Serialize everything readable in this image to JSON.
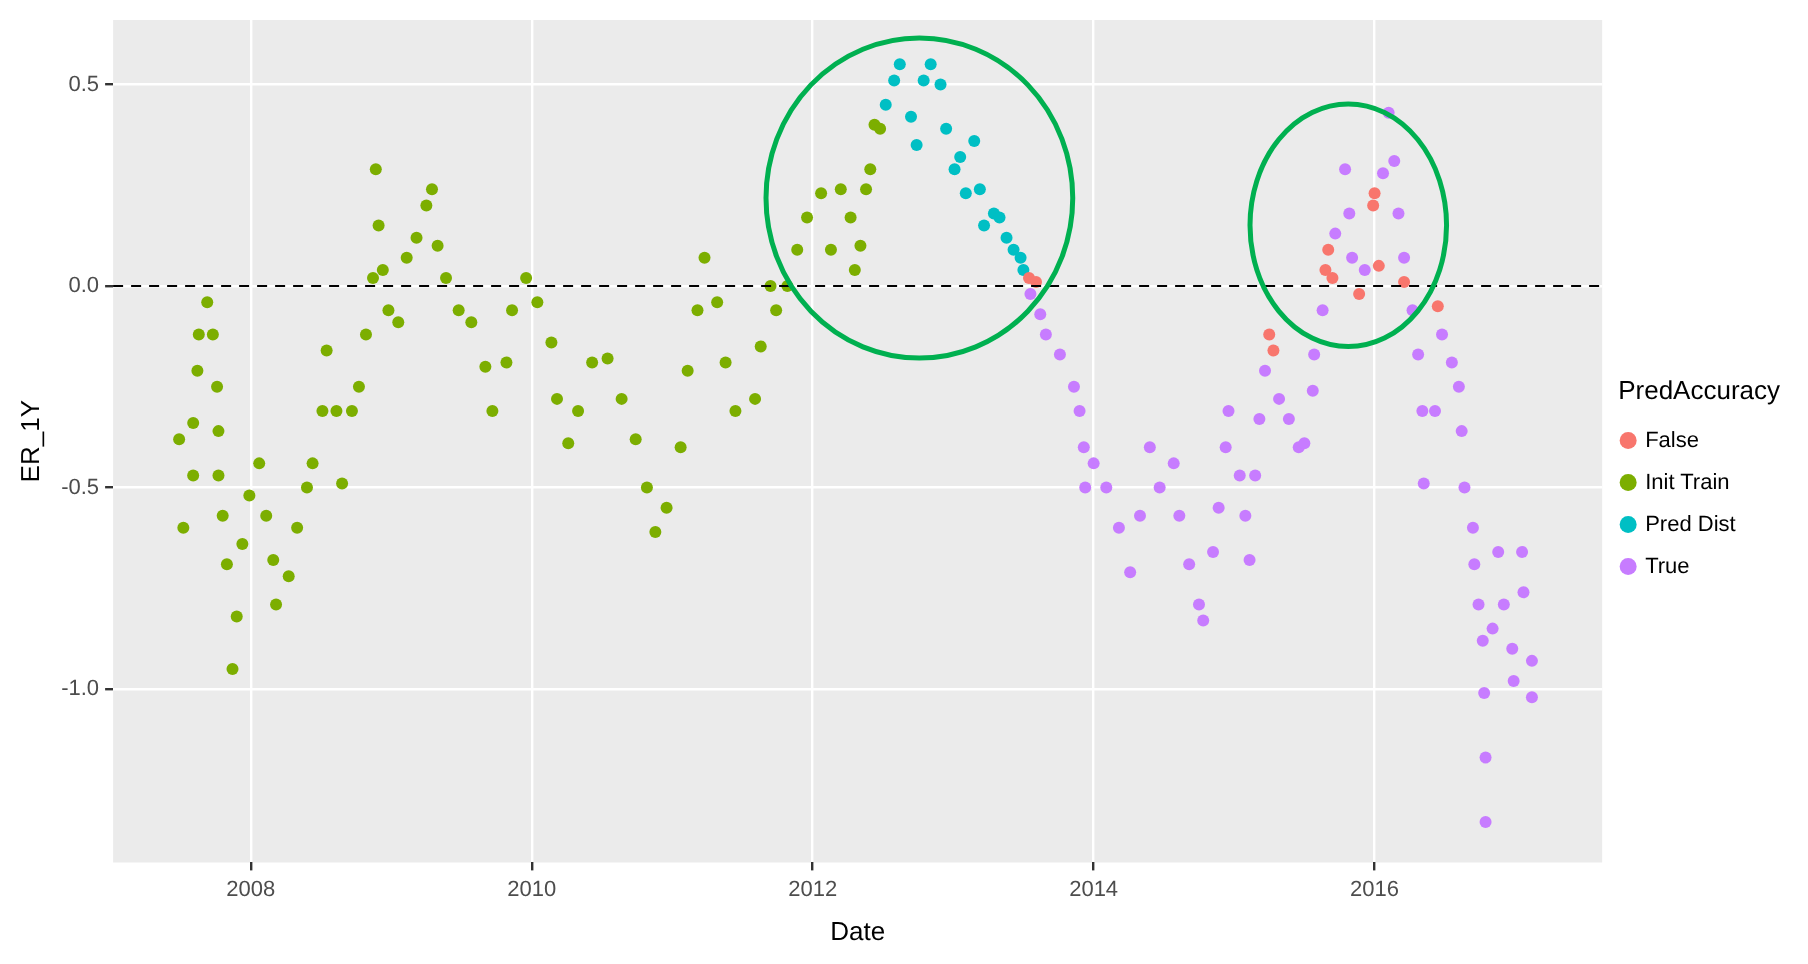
{
  "chart_data": {
    "type": "scatter",
    "xlabel": "Date",
    "ylabel": "ER_1Y",
    "legend_title": "PredAccuracy",
    "legend": "right",
    "grid": true,
    "marker": "circle",
    "xlim": [
      2007.02,
      2017.62
    ],
    "xticks": [
      2008,
      2010,
      2012,
      2014,
      2016
    ],
    "ylim": [
      -1.43,
      0.66
    ],
    "yticks": [
      {
        "value": -1,
        "label": "-1.0"
      },
      {
        "value": -0.5,
        "label": "-0.5"
      },
      {
        "value": 0,
        "label": "0.0"
      },
      {
        "value": 0.5,
        "label": "0.5"
      }
    ],
    "ref_lines": [
      {
        "axis": "y",
        "value": 0,
        "color": "#000000",
        "line_style": "dashed"
      }
    ],
    "series": [
      {
        "name": "False",
        "color": "#f8766d",
        "x": [
          2013.54,
          2013.59,
          2015.25,
          2015.28,
          2015.65,
          2015.67,
          2015.7,
          2015.89,
          2015.99,
          2016.0,
          2016.03,
          2016.21,
          2016.45
        ],
        "values": [
          0.02,
          0.01,
          -0.12,
          -0.16,
          0.04,
          0.09,
          0.02,
          -0.02,
          0.2,
          0.23,
          0.05,
          0.01,
          -0.05
        ]
      },
      {
        "name": "Init Train",
        "color": "#7cae00",
        "x": [
          2007.49,
          2007.52,
          2007.59,
          2007.59,
          2007.62,
          2007.63,
          2007.69,
          2007.73,
          2007.76,
          2007.77,
          2007.77,
          2007.8,
          2007.83,
          2007.87,
          2007.9,
          2007.94,
          2007.99,
          2008.06,
          2008.11,
          2008.16,
          2008.18,
          2008.27,
          2008.33,
          2008.4,
          2008.44,
          2008.51,
          2008.54,
          2008.61,
          2008.65,
          2008.72,
          2008.77,
          2008.82,
          2008.87,
          2008.89,
          2008.91,
          2008.94,
          2008.98,
          2009.05,
          2009.11,
          2009.18,
          2009.25,
          2009.29,
          2009.33,
          2009.39,
          2009.48,
          2009.57,
          2009.67,
          2009.72,
          2009.82,
          2009.86,
          2009.96,
          2010.04,
          2010.14,
          2010.18,
          2010.26,
          2010.33,
          2010.43,
          2010.54,
          2010.64,
          2010.74,
          2010.82,
          2010.88,
          2010.96,
          2011.06,
          2011.11,
          2011.18,
          2011.23,
          2011.32,
          2011.38,
          2011.45,
          2011.59,
          2011.63,
          2011.7,
          2011.74,
          2011.82,
          2011.89,
          2011.96,
          2012.06,
          2012.13,
          2012.2,
          2012.27,
          2012.3,
          2012.34,
          2012.38,
          2012.41,
          2012.44,
          2012.48
        ],
        "values": [
          -0.38,
          -0.6,
          -0.47,
          -0.34,
          -0.21,
          -0.12,
          -0.04,
          -0.12,
          -0.25,
          -0.36,
          -0.47,
          -0.57,
          -0.69,
          -0.95,
          -0.82,
          -0.64,
          -0.52,
          -0.44,
          -0.57,
          -0.68,
          -0.79,
          -0.72,
          -0.6,
          -0.5,
          -0.44,
          -0.31,
          -0.16,
          -0.31,
          -0.49,
          -0.31,
          -0.25,
          -0.12,
          0.02,
          0.29,
          0.15,
          0.04,
          -0.06,
          -0.09,
          0.07,
          0.12,
          0.2,
          0.24,
          0.1,
          0.02,
          -0.06,
          -0.09,
          -0.2,
          -0.31,
          -0.19,
          -0.06,
          0.02,
          -0.04,
          -0.14,
          -0.28,
          -0.39,
          -0.31,
          -0.19,
          -0.18,
          -0.28,
          -0.38,
          -0.5,
          -0.61,
          -0.55,
          -0.4,
          -0.21,
          -0.06,
          0.07,
          -0.04,
          -0.19,
          -0.31,
          -0.28,
          -0.15,
          0.0,
          -0.06,
          0.0,
          0.09,
          0.17,
          0.23,
          0.09,
          0.24,
          0.17,
          0.04,
          0.1,
          0.24,
          0.29,
          0.4,
          0.39
        ]
      },
      {
        "name": "Pred Dist",
        "color": "#00bfc4",
        "x": [
          2012.52,
          2012.58,
          2012.62,
          2012.7,
          2012.74,
          2012.79,
          2012.84,
          2012.91,
          2012.95,
          2013.01,
          2013.05,
          2013.09,
          2013.15,
          2013.19,
          2013.22,
          2013.29,
          2013.33,
          2013.38,
          2013.43,
          2013.48,
          2013.5
        ],
        "values": [
          0.45,
          0.51,
          0.55,
          0.42,
          0.35,
          0.51,
          0.55,
          0.5,
          0.39,
          0.29,
          0.32,
          0.23,
          0.36,
          0.24,
          0.15,
          0.18,
          0.17,
          0.12,
          0.09,
          0.07,
          0.04
        ]
      },
      {
        "name": "True",
        "color": "#c77cff",
        "x": [
          2013.55,
          2013.62,
          2013.66,
          2013.76,
          2013.86,
          2013.9,
          2013.93,
          2013.94,
          2014.0,
          2014.09,
          2014.18,
          2014.26,
          2014.33,
          2014.4,
          2014.47,
          2014.57,
          2014.61,
          2014.68,
          2014.75,
          2014.78,
          2014.85,
          2014.89,
          2014.94,
          2014.96,
          2015.04,
          2015.08,
          2015.11,
          2015.15,
          2015.18,
          2015.22,
          2015.32,
          2015.39,
          2015.46,
          2015.5,
          2015.56,
          2015.57,
          2015.63,
          2015.72,
          2015.79,
          2015.82,
          2015.84,
          2015.93,
          2016.06,
          2016.1,
          2016.14,
          2016.17,
          2016.21,
          2016.27,
          2016.31,
          2016.34,
          2016.35,
          2016.43,
          2016.48,
          2016.55,
          2016.6,
          2016.62,
          2016.64,
          2016.7,
          2016.71,
          2016.74,
          2016.77,
          2016.78,
          2016.79,
          2016.79,
          2016.84,
          2016.88,
          2016.92,
          2016.98,
          2016.99,
          2017.05,
          2017.06,
          2017.12,
          2017.12
        ],
        "values": [
          -0.02,
          -0.07,
          -0.12,
          -0.17,
          -0.25,
          -0.31,
          -0.4,
          -0.5,
          -0.44,
          -0.5,
          -0.6,
          -0.71,
          -0.57,
          -0.4,
          -0.5,
          -0.44,
          -0.57,
          -0.69,
          -0.79,
          -0.83,
          -0.66,
          -0.55,
          -0.4,
          -0.31,
          -0.47,
          -0.57,
          -0.68,
          -0.47,
          -0.33,
          -0.21,
          -0.28,
          -0.33,
          -0.4,
          -0.39,
          -0.26,
          -0.17,
          -0.06,
          0.13,
          0.29,
          0.18,
          0.07,
          0.04,
          0.28,
          0.43,
          0.31,
          0.18,
          0.07,
          -0.06,
          -0.17,
          -0.31,
          -0.49,
          -0.31,
          -0.12,
          -0.19,
          -0.25,
          -0.36,
          -0.5,
          -0.6,
          -0.69,
          -0.79,
          -0.88,
          -1.01,
          -1.17,
          -1.33,
          -0.85,
          -0.66,
          -0.79,
          -0.9,
          -0.98,
          -0.66,
          -0.76,
          -0.93,
          -1.02
        ]
      }
    ]
  }
}
